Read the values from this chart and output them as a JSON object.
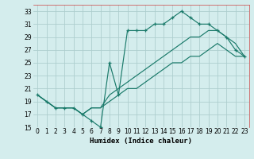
{
  "xlabel": "Humidex (Indice chaleur)",
  "background_color": "#d4eded",
  "grid_color": "#aecece",
  "line_color": "#1a7a6a",
  "xlim": [
    -0.5,
    23.5
  ],
  "ylim": [
    15,
    34
  ],
  "xticks": [
    0,
    1,
    2,
    3,
    4,
    5,
    6,
    7,
    8,
    9,
    10,
    11,
    12,
    13,
    14,
    15,
    16,
    17,
    18,
    19,
    20,
    21,
    22,
    23
  ],
  "yticks": [
    15,
    17,
    19,
    21,
    23,
    25,
    27,
    29,
    31,
    33
  ],
  "line_zigzag_x": [
    0,
    1,
    2,
    3,
    4,
    5,
    6,
    7,
    8,
    9,
    10,
    11,
    12,
    13,
    14,
    15,
    16,
    17,
    18,
    19,
    20,
    21,
    22,
    23
  ],
  "line_zigzag_y": [
    20,
    19,
    18,
    18,
    18,
    17,
    16,
    15,
    25,
    20,
    30,
    30,
    30,
    31,
    31,
    32,
    33,
    32,
    31,
    31,
    30,
    29,
    27,
    26
  ],
  "line_diag1_x": [
    0,
    1,
    2,
    3,
    4,
    5,
    6,
    7,
    8,
    9,
    10,
    11,
    12,
    13,
    14,
    15,
    16,
    17,
    18,
    19,
    20,
    21,
    22,
    23
  ],
  "line_diag1_y": [
    20,
    19,
    18,
    18,
    18,
    17,
    18,
    18,
    20,
    21,
    22,
    23,
    24,
    25,
    26,
    27,
    28,
    29,
    29,
    30,
    30,
    29,
    28,
    26
  ],
  "line_diag2_x": [
    0,
    1,
    2,
    3,
    4,
    5,
    6,
    7,
    8,
    9,
    10,
    11,
    12,
    13,
    14,
    15,
    16,
    17,
    18,
    19,
    20,
    21,
    22,
    23
  ],
  "line_diag2_y": [
    20,
    19,
    18,
    18,
    18,
    17,
    18,
    18,
    19,
    20,
    21,
    21,
    22,
    23,
    24,
    25,
    25,
    26,
    26,
    27,
    28,
    27,
    26,
    26
  ]
}
